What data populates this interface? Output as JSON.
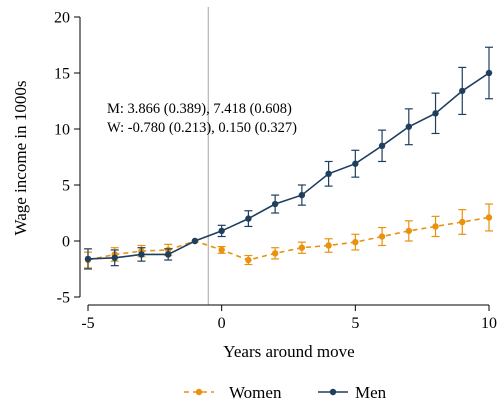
{
  "chart_data": {
    "type": "line",
    "xlabel": "Years around move",
    "ylabel": "Wage income in 1000s",
    "xlim": [
      -5,
      10
    ],
    "ylim": [
      -5,
      20
    ],
    "x_ticks": [
      -5,
      0,
      5,
      10
    ],
    "y_ticks": [
      -5,
      0,
      5,
      10,
      15,
      20
    ],
    "x_tick_labels": [
      "-5",
      "0",
      "5",
      "10"
    ],
    "y_tick_labels": [
      "-5",
      "0",
      "5",
      "10",
      "15",
      "20"
    ],
    "reference_line_x": -0.5,
    "grid": false,
    "legend_position": "bottom",
    "annotations": [
      "M: 3.866 (0.389), 7.418 (0.608)",
      "W: -0.780 (0.213), 0.150 (0.327)"
    ],
    "x": [
      -5,
      -4,
      -3,
      -2,
      -1,
      0,
      1,
      2,
      3,
      4,
      5,
      6,
      7,
      8,
      9,
      10
    ],
    "series": [
      {
        "name": "Women",
        "color": "#E8920E",
        "dashed": true,
        "values": [
          -1.7,
          -1.2,
          -0.9,
          -0.8,
          0,
          -0.8,
          -1.7,
          -1.1,
          -0.6,
          -0.4,
          -0.1,
          0.4,
          0.9,
          1.3,
          1.7,
          2.1
        ],
        "ci_low": [
          -2.4,
          -1.8,
          -1.4,
          -1.3,
          0,
          -1.1,
          -2.1,
          -1.6,
          -1.1,
          -1.0,
          -0.8,
          -0.4,
          0.0,
          0.4,
          0.6,
          0.9
        ],
        "ci_high": [
          -1.0,
          -0.6,
          -0.4,
          -0.3,
          0,
          -0.5,
          -1.3,
          -0.6,
          -0.1,
          0.2,
          0.6,
          1.2,
          1.8,
          2.2,
          2.8,
          3.3
        ]
      },
      {
        "name": "Men",
        "color": "#1F3F5F",
        "dashed": false,
        "values": [
          -1.6,
          -1.5,
          -1.2,
          -1.2,
          0,
          0.9,
          2.0,
          3.3,
          4.1,
          6.0,
          6.9,
          8.5,
          10.2,
          11.4,
          13.4,
          15.0
        ],
        "ci_low": [
          -2.5,
          -2.2,
          -1.8,
          -1.7,
          0,
          0.4,
          1.3,
          2.5,
          3.2,
          4.9,
          5.7,
          7.1,
          8.6,
          9.6,
          11.3,
          12.7
        ],
        "ci_high": [
          -0.7,
          -0.8,
          -0.6,
          -0.7,
          0,
          1.4,
          2.7,
          4.1,
          5.0,
          7.1,
          8.1,
          9.9,
          11.8,
          13.2,
          15.5,
          17.3
        ]
      }
    ]
  }
}
